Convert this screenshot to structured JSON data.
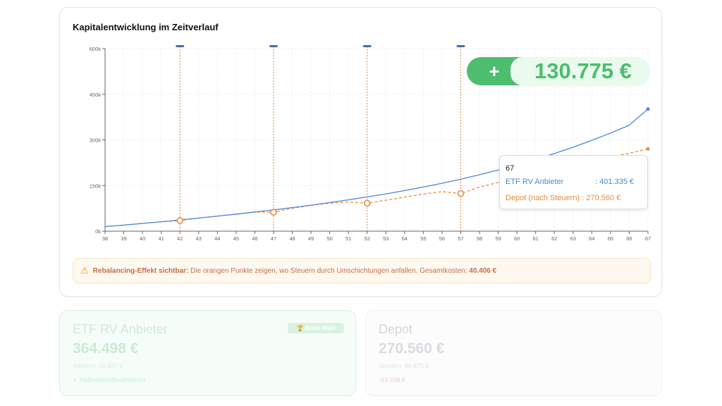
{
  "chart_card": {
    "title": "Kapitalentwicklung im Zeitverlauf",
    "gain": {
      "sign": "+",
      "value": "130.775 €"
    },
    "tooltip": {
      "x": "67",
      "etf_label": "ETF RV Anbieter",
      "etf_value": ": 401.335 €",
      "depot_label": "Depot (nach Steuern) : 270.560 €"
    },
    "notice": {
      "icon": "warning-icon",
      "bold_label": "Rebalancing-Effekt sichtbar:",
      "text": "Die orangen Punkte zeigen, wo Steuern durch Umschichtungen anfallen. Gesamtkosten:",
      "total": "40.406 €"
    }
  },
  "chart_data": {
    "type": "line",
    "x": [
      38,
      39,
      40,
      41,
      42,
      43,
      44,
      45,
      46,
      47,
      48,
      49,
      50,
      51,
      52,
      53,
      54,
      55,
      56,
      57,
      58,
      59,
      60,
      61,
      62,
      63,
      64,
      65,
      66,
      67
    ],
    "xlim": [
      38,
      67
    ],
    "ylim": [
      0,
      600000
    ],
    "yticks": [
      0,
      150000,
      300000,
      450000,
      600000
    ],
    "ytick_labels": [
      "0k",
      "150k",
      "300k",
      "450k",
      "600k"
    ],
    "grid": true,
    "colors": {
      "etf": "#4a86d8",
      "depot": "#e88c3c"
    },
    "series": [
      {
        "name": "ETF RV Anbieter",
        "style": "solid",
        "values": [
          15000,
          20000,
          25500,
          31000,
          37000,
          43000,
          49500,
          56000,
          63000,
          70000,
          77500,
          85500,
          94000,
          103000,
          112500,
          122500,
          133500,
          145000,
          157500,
          171000,
          185500,
          201000,
          217500,
          235500,
          255000,
          276000,
          298500,
          322500,
          348500,
          401335
        ]
      },
      {
        "name": "Depot (nach Steuern)",
        "style": "dashed",
        "values": [
          15000,
          20000,
          25500,
          31000,
          35000,
          43000,
          49500,
          56000,
          63000,
          62000,
          75000,
          85000,
          92000,
          96000,
          92000,
          102000,
          112000,
          122000,
          130000,
          124000,
          145000,
          160000,
          176000,
          193000,
          205000,
          219000,
          233000,
          244000,
          256000,
          270560
        ]
      }
    ],
    "rebalancing_x": [
      42,
      47,
      52,
      57
    ]
  },
  "cards": {
    "etf": {
      "title": "ETF RV Anbieter",
      "badge": "🏆 Beste Wahl",
      "value": "364.498 €",
      "taxes": "Steuern: 36.837 €",
      "note": "✓ Halbeinkünfteverfahren"
    },
    "depot": {
      "title": "Depot",
      "value": "270.560 €",
      "taxes": "Steuern: 94.875 €",
      "diff": "-93.938 €"
    }
  }
}
